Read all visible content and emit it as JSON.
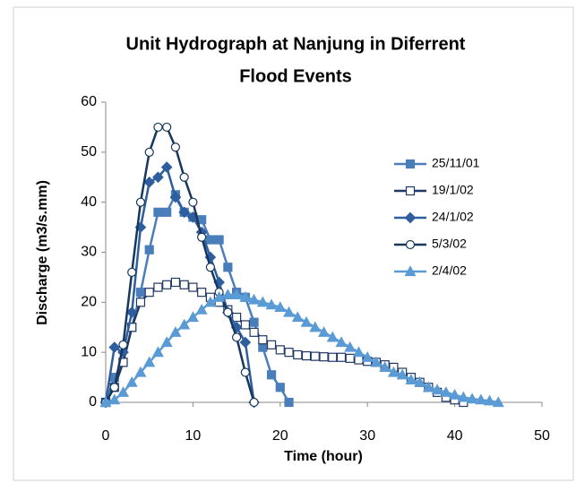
{
  "chart_data": {
    "type": "line",
    "title": [
      "Unit Hydrograph at Nanjung in Diferrent",
      "Flood Events"
    ],
    "x_label": "Time (hour)",
    "y_label": "Discharge (m3/s.mm)",
    "xlim": [
      0,
      50
    ],
    "xticks": [
      0,
      10,
      20,
      30,
      40,
      50
    ],
    "ylim": [
      0,
      60
    ],
    "yticks": [
      0,
      10,
      20,
      30,
      40,
      50,
      60
    ],
    "grid": false,
    "legend": "right",
    "series": [
      {
        "name": "25/11/01",
        "color": "#4a7ebb",
        "marker": "square",
        "filled": true,
        "x": [
          0,
          1,
          2,
          3,
          4,
          5,
          6,
          7,
          8,
          9,
          10,
          11,
          12,
          13,
          14,
          15,
          16,
          17,
          18,
          19,
          20,
          21
        ],
        "values": [
          0,
          5,
          8,
          15,
          22,
          30.5,
          38,
          38,
          41.5,
          38,
          37,
          36.5,
          32.5,
          32.5,
          27,
          22,
          21,
          16,
          11,
          5.5,
          3,
          0
        ]
      },
      {
        "name": "19/1/02",
        "color": "#1f3864",
        "marker": "square",
        "filled": false,
        "x": [
          0,
          1,
          2,
          3,
          4,
          5,
          6,
          7,
          8,
          9,
          10,
          11,
          12,
          13,
          14,
          15,
          16,
          17,
          18,
          19,
          20,
          21,
          22,
          23,
          24,
          25,
          26,
          27,
          28,
          29,
          30,
          31,
          32,
          33,
          34,
          35,
          36,
          37,
          38,
          39,
          40,
          41
        ],
        "values": [
          0,
          3,
          8,
          15,
          20,
          22,
          23,
          23.5,
          24,
          23.5,
          23,
          22,
          21,
          20,
          18.5,
          17,
          15.5,
          14,
          12.5,
          11.5,
          10.5,
          10,
          9.5,
          9.3,
          9.2,
          9.1,
          9,
          9,
          8.8,
          8.5,
          8.2,
          8,
          7.5,
          7,
          6,
          5,
          4,
          3,
          2,
          1,
          0.5,
          0
        ]
      },
      {
        "name": "24/1/02",
        "color": "#2e5e9e",
        "marker": "diamond",
        "filled": true,
        "x": [
          0,
          1,
          2,
          3,
          4,
          5,
          6,
          7,
          8,
          9,
          10,
          11,
          12,
          13,
          14,
          15,
          16,
          17
        ],
        "values": [
          0,
          11,
          10,
          18,
          35,
          44,
          45,
          47,
          41,
          38,
          37,
          34,
          29,
          24,
          18,
          15,
          12,
          0
        ]
      },
      {
        "name": "5/3/02",
        "color": "#17375e",
        "marker": "circle",
        "filled": false,
        "x": [
          0,
          1,
          2,
          3,
          4,
          5,
          6,
          7,
          8,
          9,
          10,
          11,
          12,
          13,
          14,
          15,
          16,
          17
        ],
        "values": [
          0,
          3,
          11.5,
          26,
          40,
          50,
          55,
          55,
          51,
          45,
          40,
          33,
          27,
          22,
          18,
          13,
          6,
          0
        ]
      },
      {
        "name": "2/4/02",
        "color": "#5b9bd5",
        "marker": "triangle",
        "filled": true,
        "x": [
          0,
          1,
          2,
          3,
          4,
          5,
          6,
          7,
          8,
          9,
          10,
          11,
          12,
          13,
          14,
          15,
          16,
          17,
          18,
          19,
          20,
          21,
          22,
          23,
          24,
          25,
          26,
          27,
          28,
          29,
          30,
          31,
          32,
          33,
          34,
          35,
          36,
          37,
          38,
          39,
          40,
          41,
          42,
          43,
          44,
          45
        ],
        "values": [
          0,
          0.5,
          2,
          4,
          6,
          8,
          10,
          12,
          14,
          15.5,
          17,
          18.5,
          20,
          21,
          21.5,
          21.5,
          21,
          20.5,
          20,
          19.5,
          19,
          18,
          17,
          16,
          15,
          14,
          13,
          12,
          11,
          10,
          9,
          8,
          7,
          6,
          5.5,
          4.5,
          4,
          3,
          2.5,
          2,
          1.5,
          1,
          0.7,
          0.5,
          0.3,
          0
        ]
      }
    ]
  }
}
